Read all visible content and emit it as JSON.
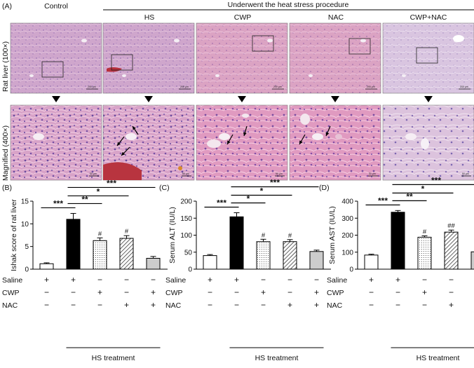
{
  "figure": {
    "panel_a_label": "(A)",
    "header_control": "Control",
    "header_group": "Underwent the heat stress procedure",
    "groups": [
      "HS",
      "CWP",
      "NAC",
      "CWP+NAC"
    ],
    "row_labels": [
      "Rat liver (100×)",
      "Magnified (400×)"
    ],
    "scalebar_top": "200 μm",
    "scalebar_bottom": "50 μm"
  },
  "chart_data": [
    {
      "panel": "(B)",
      "type": "bar",
      "categories": [
        "1",
        "2",
        "3",
        "4",
        "5"
      ],
      "values": [
        1.2,
        11.0,
        6.3,
        6.8,
        2.4
      ],
      "errors": [
        0.2,
        1.3,
        0.6,
        0.6,
        0.4
      ],
      "fills": [
        "white",
        "black",
        "dots",
        "hatch",
        "gray"
      ],
      "ylabel": "Ishak score of rat liver",
      "ylim": [
        0,
        15
      ],
      "yticks": [
        0,
        5,
        10,
        15
      ],
      "hash_marks": [
        "",
        "",
        "#",
        "#",
        ""
      ],
      "sig_brackets": [
        {
          "from": 0,
          "to": 1,
          "label": "***"
        },
        {
          "from": 1,
          "to": 2,
          "label": "**"
        },
        {
          "from": 1,
          "to": 3,
          "label": "*"
        },
        {
          "from": 1,
          "to": 4,
          "label": "***"
        }
      ],
      "treatments": {
        "Saline": [
          "+",
          "+",
          "−",
          "−",
          "−"
        ],
        "CWP": [
          "−",
          "−",
          "+",
          "−",
          "+"
        ],
        "NAC": [
          "−",
          "−",
          "−",
          "+",
          "+"
        ]
      },
      "xlabel": "HS treatment"
    },
    {
      "panel": "(C)",
      "type": "bar",
      "categories": [
        "1",
        "2",
        "3",
        "4",
        "5"
      ],
      "values": [
        40,
        154,
        81,
        81,
        52
      ],
      "errors": [
        3,
        12,
        7,
        6,
        4
      ],
      "fills": [
        "white",
        "black",
        "dots",
        "hatch",
        "gray"
      ],
      "ylabel": "Serum ALT (IU/L)",
      "ylim": [
        0,
        200
      ],
      "yticks": [
        0,
        50,
        100,
        150,
        200
      ],
      "hash_marks": [
        "",
        "",
        "#",
        "#",
        ""
      ],
      "sig_brackets": [
        {
          "from": 0,
          "to": 1,
          "label": "***"
        },
        {
          "from": 1,
          "to": 2,
          "label": "*"
        },
        {
          "from": 1,
          "to": 3,
          "label": "*"
        },
        {
          "from": 1,
          "to": 4,
          "label": "***"
        }
      ],
      "treatments": {
        "Saline": [
          "+",
          "+",
          "−",
          "−",
          "−"
        ],
        "CWP": [
          "−",
          "−",
          "+",
          "−",
          "+"
        ],
        "NAC": [
          "−",
          "−",
          "−",
          "+",
          "+"
        ]
      },
      "xlabel": "HS treatment"
    },
    {
      "panel": "(D)",
      "type": "bar",
      "categories": [
        "1",
        "2",
        "3",
        "4",
        "5"
      ],
      "values": [
        83,
        335,
        188,
        218,
        102
      ],
      "errors": [
        5,
        10,
        8,
        12,
        6
      ],
      "fills": [
        "white",
        "black",
        "dots",
        "hatch",
        "gray"
      ],
      "ylabel": "Serum AST (IU/L)",
      "ylim": [
        0,
        400
      ],
      "yticks": [
        0,
        100,
        200,
        300,
        400
      ],
      "hash_marks": [
        "",
        "",
        "#",
        "##",
        ""
      ],
      "sig_brackets": [
        {
          "from": 0,
          "to": 1,
          "label": "***"
        },
        {
          "from": 1,
          "to": 2,
          "label": "**"
        },
        {
          "from": 1,
          "to": 3,
          "label": "*"
        },
        {
          "from": 1,
          "to": 4,
          "label": "***"
        }
      ],
      "treatments": {
        "Saline": [
          "+",
          "+",
          "−",
          "−",
          "−"
        ],
        "CWP": [
          "−",
          "−",
          "+",
          "−",
          "+"
        ],
        "NAC": [
          "−",
          "−",
          "−",
          "+",
          "+"
        ]
      },
      "xlabel": "HS treatment"
    }
  ]
}
